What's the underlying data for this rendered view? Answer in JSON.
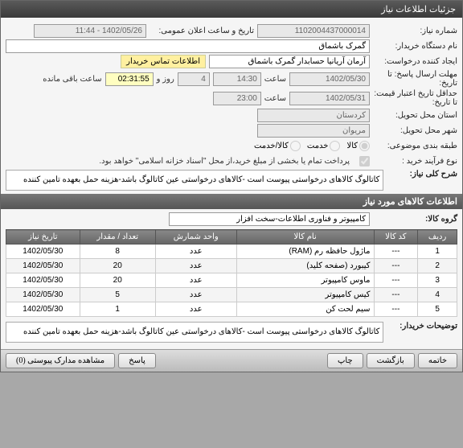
{
  "window": {
    "title": "جزئیات اطلاعات نیاز"
  },
  "form": {
    "req_no_label": "شماره نیاز:",
    "req_no": "1102004437000014",
    "announce_label": "تاریخ و ساعت اعلان عمومی:",
    "announce_val": "1402/05/26 - 11:44",
    "agency_label": "نام دستگاه خریدار:",
    "agency_val": "گمرک باشماق",
    "creator_label": "ایجاد کننده درخواست:",
    "creator_val": "آرمان آریانیا حسابدار گمرک باشماق",
    "buyer_contact_btn": "اطلاعات تماس خریدار",
    "deadline_label": "مهلت ارسال پاسخ: تا تاریخ:",
    "deadline_date": "1402/05/30",
    "hour_label": "ساعت",
    "deadline_time": "14:30",
    "day_and": "روز و",
    "days_val": "4",
    "remaining_label": "ساعت باقی مانده",
    "remaining_time": "02:31:55",
    "validity_label": "حداقل تاریخ اعتبار قیمت: تا تاریخ:",
    "validity_date": "1402/05/31",
    "validity_time": "23:00",
    "province_label": "استان محل تحویل:",
    "province_val": "کردستان",
    "city_label": "شهر محل تحویل:",
    "city_val": "مریوان",
    "category_label": "طبقه بندی موضوعی:",
    "cat_goods": "کالا",
    "cat_service": "خدمت",
    "cat_both": "کالا/خدمت",
    "process_label": "نوع فرآیند خرید :",
    "process_note": "پرداخت تمام یا بخشی از مبلغ خرید،از محل \"اسناد خزانه اسلامی\" خواهد بود.",
    "desc_header_label": "شرح کلی نیاز:",
    "desc_text": "کاتالوگ کالاهای درخواستی پیوست است -کالاهای درخواستی عین کاتالوگ باشد-هزینه حمل بعهده تامین کننده"
  },
  "items_section": {
    "title": "اطلاعات کالاهای مورد نیاز",
    "group_label": "گروه کالا:",
    "group_val": "کامپیوتر و فناوری اطلاعات-سخت افزار",
    "cols": {
      "row": "ردیف",
      "code": "کد کالا",
      "name": "نام کالا",
      "unit": "واحد شمارش",
      "qty": "تعداد / مقدار",
      "date": "تاریخ نیاز"
    },
    "rows": [
      {
        "n": "1",
        "code": "---",
        "name": "ماژول حافظه رم (RAM)",
        "unit": "عدد",
        "qty": "8",
        "date": "1402/05/30"
      },
      {
        "n": "2",
        "code": "---",
        "name": "کیبورد (صفحه کلید)",
        "unit": "عدد",
        "qty": "20",
        "date": "1402/05/30"
      },
      {
        "n": "3",
        "code": "---",
        "name": "ماوس کامپیوتر",
        "unit": "عدد",
        "qty": "20",
        "date": "1402/05/30"
      },
      {
        "n": "4",
        "code": "---",
        "name": "کیس کامپیوتر",
        "unit": "عدد",
        "qty": "5",
        "date": "1402/05/30"
      },
      {
        "n": "5",
        "code": "---",
        "name": "سیم لحت کن",
        "unit": "عدد",
        "qty": "1",
        "date": "1402/05/30"
      }
    ]
  },
  "buyer_notes": {
    "label": "توضیحات خریدار:",
    "text": "کاتالوگ کالاهای درخواستی پیوست است -کالاهای درخواستی عین کاتالوگ باشد-هزینه حمل بعهده تامین کننده"
  },
  "footer": {
    "close": "خاتمه",
    "back": "بازگشت",
    "print": "چاپ",
    "reply": "پاسخ",
    "attachments": "مشاهده مدارک پیوستی (0)"
  }
}
